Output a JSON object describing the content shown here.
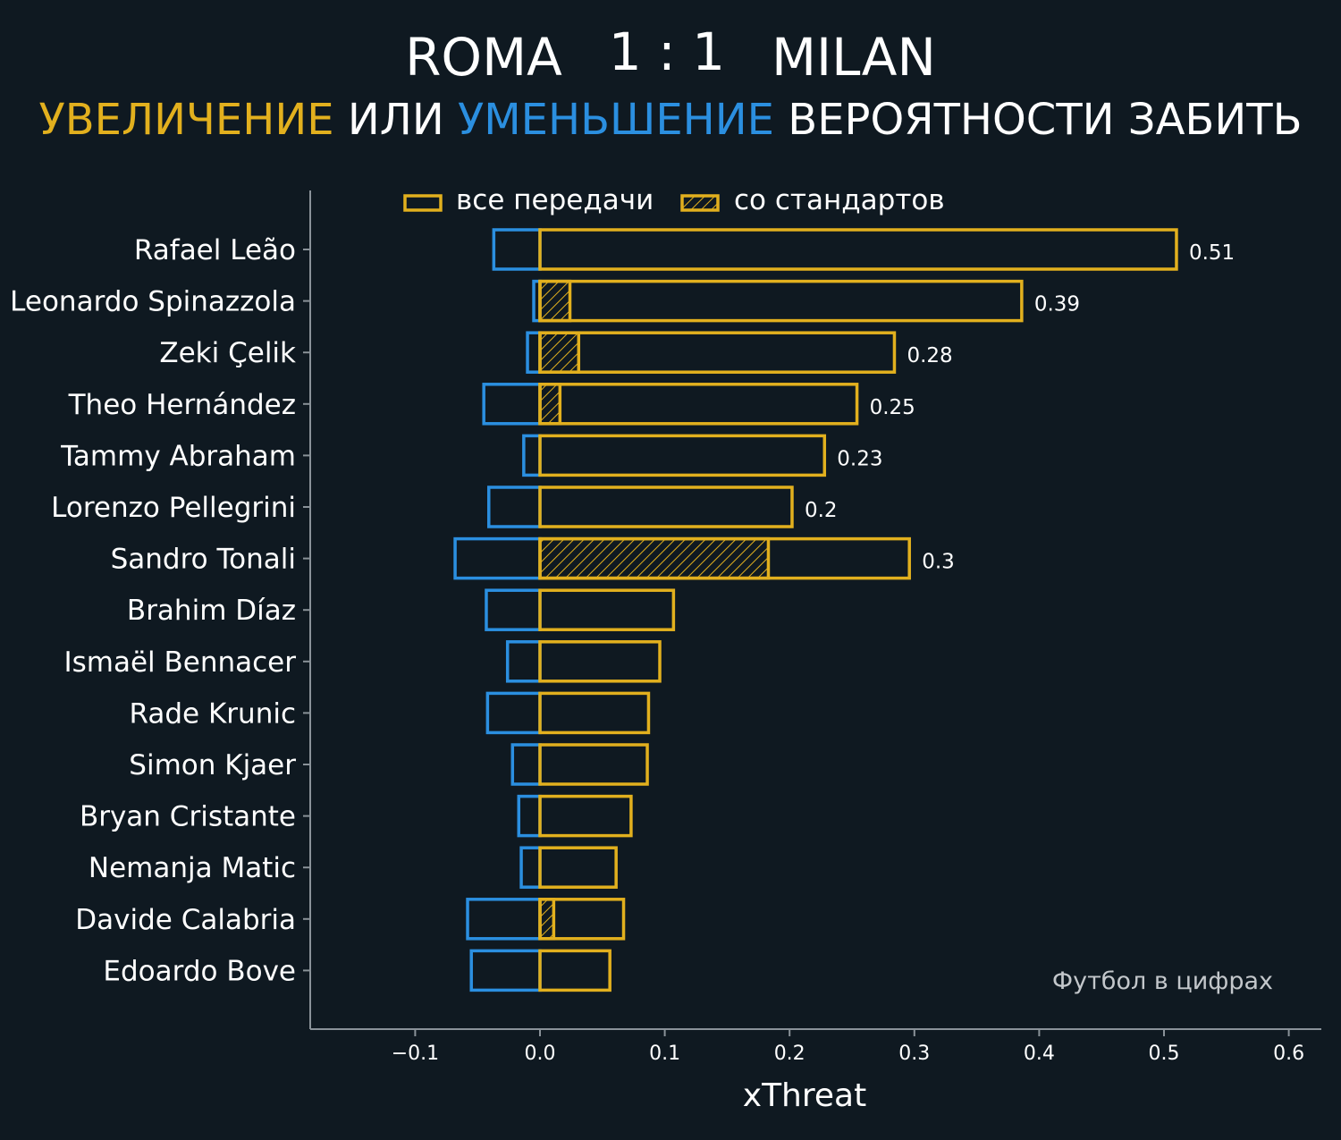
{
  "header": {
    "home_team": "ROMA",
    "score": "1 : 1",
    "away_team": "MILAN",
    "subtitle_increase": "УВЕЛИЧЕНИЕ",
    "subtitle_or": "ИЛИ",
    "subtitle_decrease": "УМЕНЬШЕНИЕ",
    "subtitle_rest": "ВЕРОЯТНОСТИ ЗАБИТЬ"
  },
  "watermark": "Футбол в цифрах",
  "colors": {
    "background": "#0f1921",
    "increase": "#e2b01e",
    "decrease": "#2b8fe0",
    "axis": "#8a9299"
  },
  "chart_data": {
    "type": "bar",
    "orientation": "horizontal",
    "xlabel": "xThreat",
    "xlim": [
      -0.185,
      0.625
    ],
    "xticks": [
      -0.1,
      0.0,
      0.1,
      0.2,
      0.3,
      0.4,
      0.5,
      0.6
    ],
    "xtick_labels": [
      "−0.1",
      "0.0",
      "0.1",
      "0.2",
      "0.3",
      "0.4",
      "0.5",
      "0.6"
    ],
    "legend": {
      "position": "top",
      "entries": [
        {
          "label": "все передачи",
          "style": "outline"
        },
        {
          "label": "со стандартов",
          "style": "hatched"
        }
      ]
    },
    "categories": [
      "Rafael Leão",
      "Leonardo Spinazzola",
      "Zeki Çelik",
      "Theo Hernández",
      "Tammy Abraham",
      "Lorenzo Pellegrini",
      "Sandro Tonali",
      "Brahim Díaz",
      "Ismaël Bennacer",
      "Rade Krunic",
      "Simon Kjaer",
      "Bryan Cristante",
      "Nemanja Matic",
      "Davide Calabria",
      "Edoardo Bove"
    ],
    "series": [
      {
        "name": "все передачи",
        "values": [
          0.51,
          0.386,
          0.284,
          0.254,
          0.228,
          0.202,
          0.296,
          0.107,
          0.096,
          0.087,
          0.086,
          0.073,
          0.061,
          0.067,
          0.056
        ]
      },
      {
        "name": "со стандартов",
        "values": [
          0,
          0.024,
          0.031,
          0.016,
          0,
          0,
          0.183,
          0,
          0,
          0,
          0,
          0,
          0,
          0.011,
          0
        ]
      },
      {
        "values": [
          -0.037,
          -0.005,
          -0.01,
          -0.045,
          -0.013,
          -0.041,
          -0.068,
          -0.043,
          -0.026,
          -0.042,
          -0.022,
          -0.017,
          -0.015,
          -0.058,
          -0.055
        ]
      }
    ],
    "data_labels": [
      "0.51",
      "0.39",
      "0.28",
      "0.25",
      "0.23",
      "0.2",
      "0.3",
      "",
      "",
      "",
      "",
      "",
      "",
      "",
      ""
    ]
  }
}
